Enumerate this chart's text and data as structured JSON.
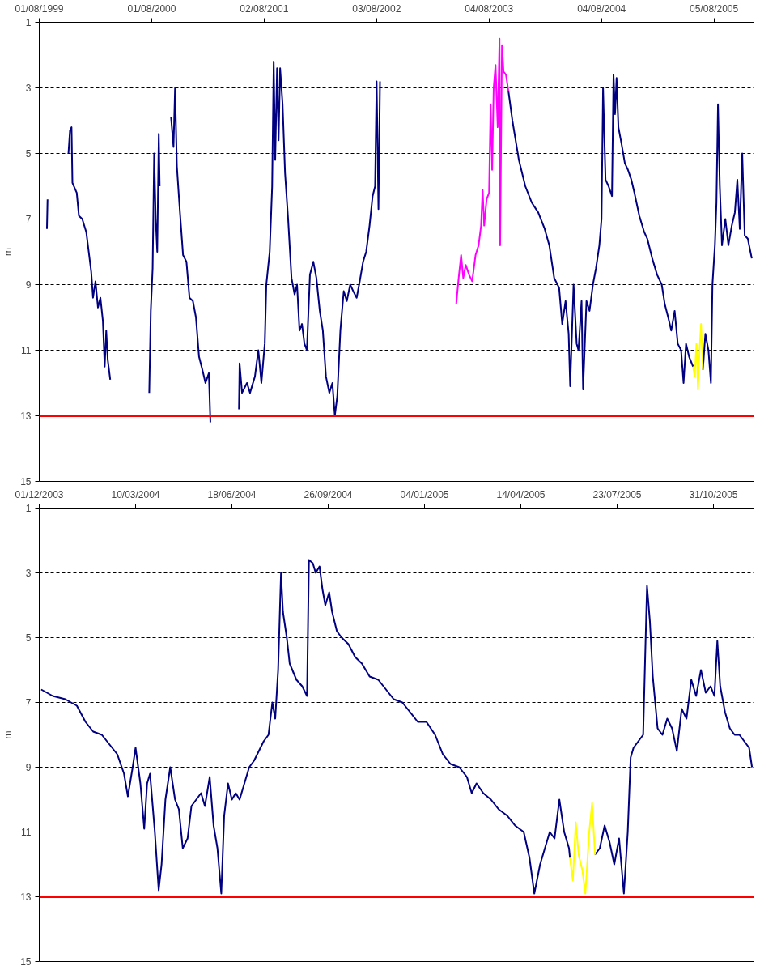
{
  "chart_data": [
    {
      "type": "line",
      "ylabel": "m",
      "xlim": [
        "1999-08-01",
        "2005-12-13"
      ],
      "ylim": [
        15,
        1
      ],
      "yticks": [
        1,
        3,
        5,
        7,
        9,
        11,
        13,
        15
      ],
      "xticks": [
        {
          "value": "1999-08-01",
          "label": "01/08/1999"
        },
        {
          "value": "2000-08-01",
          "label": "01/08/2000"
        },
        {
          "value": "2001-08-02",
          "label": "02/08/2001"
        },
        {
          "value": "2002-08-03",
          "label": "03/08/2002"
        },
        {
          "value": "2003-08-04",
          "label": "04/08/2003"
        },
        {
          "value": "2004-08-04",
          "label": "04/08/2004"
        },
        {
          "value": "2005-08-05",
          "label": "05/08/2005"
        }
      ],
      "grid": "y",
      "ref_lines": [
        {
          "axis": "y",
          "value": 13,
          "color": "#ff0000"
        }
      ],
      "series": [
        {
          "color": "#000080",
          "x": [
            "1999-08-26",
            "1999-08-28",
            "1999-10-01",
            "1999-11-04",
            "1999-11-09",
            "1999-11-14",
            "1999-11-17",
            "1999-12-01",
            "1999-12-08",
            "1999-12-19",
            "2000-01-01",
            "2000-01-09",
            "2000-01-17",
            "2000-01-23",
            "2000-01-31",
            "2000-02-08",
            "2000-02-16",
            "2000-02-24",
            "2000-03-01",
            "2000-03-06",
            "2000-03-11",
            "2000-03-19",
            "2000-05-15",
            "2000-07-24",
            "2000-07-29",
            "2000-08-04",
            "2000-08-09",
            "2000-08-14",
            "2000-08-19",
            "2000-08-24",
            "2000-08-27",
            "2000-09-15",
            "2000-10-03",
            "2000-10-11",
            "2000-10-16",
            "2000-10-22",
            "2000-11-01",
            "2000-11-11",
            "2000-11-22",
            "2000-12-02",
            "2000-12-13",
            "2000-12-23",
            "2001-01-02",
            "2001-01-13",
            "2001-01-23",
            "2001-02-03",
            "2001-02-08",
            "2001-04-01",
            "2001-05-12",
            "2001-05-14",
            "2001-05-22",
            "2001-06-07",
            "2001-06-17",
            "2001-07-03",
            "2001-07-14",
            "2001-07-24",
            "2001-08-04",
            "2001-08-09",
            "2001-08-20",
            "2001-08-28",
            "2001-09-02",
            "2001-09-07",
            "2001-09-13",
            "2001-09-18",
            "2001-09-23",
            "2001-10-01",
            "2001-10-09",
            "2001-10-19",
            "2001-10-30",
            "2001-11-09",
            "2001-11-17",
            "2001-11-25",
            "2001-12-03",
            "2001-12-11",
            "2001-12-19",
            "2001-12-29",
            "2002-01-09",
            "2002-01-19",
            "2002-01-30",
            "2002-02-09",
            "2002-02-19",
            "2002-03-02",
            "2002-03-12",
            "2002-03-20",
            "2002-03-28",
            "2002-04-07",
            "2002-04-18",
            "2002-04-28",
            "2002-05-09",
            "2002-05-19",
            "2002-05-30",
            "2002-06-09",
            "2002-06-20",
            "2002-06-30",
            "2002-07-11",
            "2002-07-21",
            "2002-07-29",
            "2002-08-03",
            "2002-08-09",
            "2002-08-14",
            "2002-12-01",
            "2003-10-06",
            "2003-10-19",
            "2003-11-09",
            "2003-11-30",
            "2003-12-21",
            "2004-01-11",
            "2004-02-01",
            "2004-02-16",
            "2004-03-03",
            "2004-03-19",
            "2004-03-29",
            "2004-04-09",
            "2004-04-19",
            "2004-04-24",
            "2004-05-05",
            "2004-05-15",
            "2004-05-21",
            "2004-05-31",
            "2004-06-05",
            "2004-06-16",
            "2004-06-26",
            "2004-07-07",
            "2004-07-17",
            "2004-07-28",
            "2004-08-04",
            "2004-08-09",
            "2004-08-17",
            "2004-08-27",
            "2004-09-07",
            "2004-09-12",
            "2004-09-17",
            "2004-09-22",
            "2004-09-28",
            "2004-10-08",
            "2004-10-19",
            "2004-10-29",
            "2004-11-09",
            "2004-11-19",
            "2004-12-05",
            "2004-12-21",
            "2004-12-31",
            "2005-01-16",
            "2005-02-01",
            "2005-02-16",
            "2005-02-26",
            "2005-03-09",
            "2005-03-19",
            "2005-03-30",
            "2005-04-09",
            "2005-04-20",
            "2005-04-28",
            "2005-05-06",
            "2005-05-16",
            "2005-05-29",
            "2005-06-15",
            "2005-06-30",
            "2005-07-08",
            "2005-07-18",
            "2005-07-26",
            "2005-07-31",
            "2005-08-08",
            "2005-08-13",
            "2005-08-18",
            "2005-08-24",
            "2005-08-31",
            "2005-09-11",
            "2005-09-21",
            "2005-10-02",
            "2005-10-12",
            "2005-10-20",
            "2005-10-28",
            "2005-11-05",
            "2005-11-13",
            "2005-11-23",
            "2005-12-06"
          ],
          "values": [
            7.3,
            6.4,
            null,
            5.0,
            4.3,
            4.2,
            5.9,
            6.2,
            6.9,
            7.0,
            7.4,
            8.0,
            8.6,
            9.4,
            8.9,
            9.7,
            9.4,
            10.1,
            11.5,
            10.4,
            11.3,
            11.9,
            null,
            12.3,
            9.8,
            8.5,
            5.0,
            7.0,
            8.0,
            4.4,
            6.0,
            null,
            3.9,
            4.8,
            3.0,
            5.4,
            6.8,
            8.1,
            8.3,
            9.4,
            9.5,
            10.0,
            11.2,
            11.6,
            12.0,
            11.7,
            13.2,
            null,
            12.8,
            11.4,
            12.3,
            12.0,
            12.3,
            11.8,
            11.0,
            12.0,
            10.8,
            9.0,
            8.0,
            6.0,
            2.2,
            5.2,
            2.4,
            4.6,
            2.4,
            3.5,
            5.6,
            7.0,
            8.8,
            9.3,
            9.0,
            10.4,
            10.2,
            10.8,
            11.0,
            8.7,
            8.3,
            8.8,
            9.8,
            10.4,
            11.8,
            12.3,
            12.0,
            13.0,
            12.4,
            10.4,
            9.2,
            9.5,
            9.0,
            9.2,
            9.4,
            8.9,
            8.3,
            8.0,
            7.2,
            6.3,
            6.0,
            2.8,
            6.7,
            2.8,
            null,
            3.1,
            4.0,
            5.2,
            6.0,
            6.5,
            6.8,
            7.3,
            7.8,
            8.8,
            9.1,
            10.2,
            9.5,
            10.5,
            12.1,
            9.0,
            10.8,
            11.0,
            9.5,
            12.2,
            9.5,
            9.8,
            9.0,
            8.5,
            7.8,
            7.0,
            3.0,
            5.8,
            6.0,
            6.3,
            2.6,
            3.8,
            2.7,
            4.2,
            4.7,
            5.3,
            5.5,
            5.8,
            6.2,
            6.9,
            7.4,
            7.6,
            8.2,
            8.7,
            9.0,
            9.6,
            10.0,
            10.4,
            9.8,
            10.8,
            11.0,
            12.0,
            10.8,
            11.2,
            11.5,
            null,
            11.6,
            10.5,
            11.0,
            12.0,
            9.0,
            7.8,
            6.5,
            3.5,
            6.0,
            7.8,
            7.0,
            7.8,
            7.2,
            6.8,
            5.8,
            7.3,
            5.0,
            7.5,
            7.6,
            8.2
          ]
        },
        {
          "color": "#ff00ff",
          "x": [
            "2003-04-19",
            "2003-04-27",
            "2003-05-05",
            "2003-05-12",
            "2003-05-20",
            "2003-05-31",
            "2003-06-10",
            "2003-06-21",
            "2003-07-01",
            "2003-07-09",
            "2003-07-14",
            "2003-07-19",
            "2003-07-27",
            "2003-08-04",
            "2003-08-09",
            "2003-08-14",
            "2003-08-19",
            "2003-08-25",
            "2003-09-01",
            "2003-09-07",
            "2003-09-09",
            "2003-09-15",
            "2003-09-20",
            "2003-09-28",
            "2003-10-06"
          ],
          "values": [
            9.6,
            8.8,
            8.1,
            8.8,
            8.4,
            8.7,
            8.9,
            8.1,
            7.8,
            7.2,
            6.1,
            7.2,
            6.4,
            6.2,
            3.5,
            5.5,
            3.0,
            2.3,
            4.2,
            1.5,
            7.8,
            1.7,
            2.5,
            2.6,
            3.1
          ]
        },
        {
          "color": "#ffff00",
          "x": [
            "2005-05-29",
            "2005-06-03",
            "2005-06-09",
            "2005-06-14",
            "2005-06-19",
            "2005-06-24",
            "2005-06-30"
          ],
          "values": [
            11.5,
            11.8,
            10.8,
            12.2,
            11.0,
            10.2,
            11.6
          ]
        }
      ]
    },
    {
      "type": "line",
      "ylabel": "m",
      "xlim": [
        "2003-12-01",
        "2005-12-12"
      ],
      "ylim": [
        15,
        1
      ],
      "yticks": [
        1,
        3,
        5,
        7,
        9,
        11,
        13,
        15
      ],
      "xticks": [
        {
          "value": "2003-12-01",
          "label": "01/12/2003"
        },
        {
          "value": "2004-03-10",
          "label": "10/03/2004"
        },
        {
          "value": "2004-06-18",
          "label": "18/06/2004"
        },
        {
          "value": "2004-09-26",
          "label": "26/09/2004"
        },
        {
          "value": "2005-01-04",
          "label": "04/01/2005"
        },
        {
          "value": "2005-04-14",
          "label": "14/04/2005"
        },
        {
          "value": "2005-07-23",
          "label": "23/07/2005"
        },
        {
          "value": "2005-10-31",
          "label": "31/10/2005"
        }
      ],
      "grid": "y",
      "ref_lines": [
        {
          "axis": "y",
          "value": 13,
          "color": "#ff0000"
        }
      ],
      "series": [
        {
          "color": "#000080",
          "x": [
            "2003-12-03",
            "2003-12-15",
            "2003-12-28",
            "2004-01-09",
            "2004-01-18",
            "2004-01-26",
            "2004-02-04",
            "2004-02-12",
            "2004-02-20",
            "2004-02-27",
            "2004-03-02",
            "2004-03-07",
            "2004-03-10",
            "2004-03-15",
            "2004-03-19",
            "2004-03-22",
            "2004-03-25",
            "2004-03-30",
            "2004-04-03",
            "2004-04-06",
            "2004-04-10",
            "2004-04-15",
            "2004-04-20",
            "2004-04-24",
            "2004-04-28",
            "2004-05-03",
            "2004-05-07",
            "2004-05-12",
            "2004-05-17",
            "2004-05-21",
            "2004-05-26",
            "2004-05-30",
            "2004-06-03",
            "2004-06-07",
            "2004-06-10",
            "2004-06-14",
            "2004-06-18",
            "2004-06-22",
            "2004-06-26",
            "2004-07-01",
            "2004-07-06",
            "2004-07-11",
            "2004-07-16",
            "2004-07-21",
            "2004-07-26",
            "2004-07-30",
            "2004-08-02",
            "2004-08-05",
            "2004-08-08",
            "2004-08-10",
            "2004-08-14",
            "2004-08-17",
            "2004-08-24",
            "2004-08-30",
            "2004-09-04",
            "2004-09-06",
            "2004-09-10",
            "2004-09-13",
            "2004-09-17",
            "2004-09-20",
            "2004-09-23",
            "2004-09-27",
            "2004-09-30",
            "2004-10-05",
            "2004-10-10",
            "2004-10-17",
            "2004-10-24",
            "2004-10-31",
            "2004-11-08",
            "2004-11-17",
            "2004-11-25",
            "2004-12-03",
            "2004-12-12",
            "2004-12-20",
            "2004-12-28",
            "2005-01-06",
            "2005-01-15",
            "2005-01-23",
            "2005-01-31",
            "2005-02-09",
            "2005-02-17",
            "2005-02-22",
            "2005-02-27",
            "2005-03-06",
            "2005-03-14",
            "2005-03-22",
            "2005-03-31",
            "2005-04-08",
            "2005-04-17",
            "2005-04-23",
            "2005-04-28",
            "2005-05-04",
            "2005-05-09",
            "2005-05-14",
            "2005-05-19",
            "2005-05-24",
            "2005-05-29",
            "2005-06-03",
            "2005-06-04",
            "2005-06-17",
            "2005-06-30",
            "2005-07-05",
            "2005-07-10",
            "2005-07-15",
            "2005-07-20",
            "2005-07-25",
            "2005-07-30",
            "2005-08-03",
            "2005-08-06",
            "2005-08-09",
            "2005-08-14",
            "2005-08-19",
            "2005-08-23",
            "2005-08-26",
            "2005-08-29",
            "2005-09-03",
            "2005-09-08",
            "2005-09-13",
            "2005-09-18",
            "2005-09-23",
            "2005-09-28",
            "2005-10-03",
            "2005-10-08",
            "2005-10-13",
            "2005-10-18",
            "2005-10-23",
            "2005-10-28",
            "2005-11-01",
            "2005-11-04",
            "2005-11-07",
            "2005-11-12",
            "2005-11-17",
            "2005-11-22",
            "2005-11-27",
            "2005-12-02",
            "2005-12-07",
            "2005-12-10"
          ],
          "values": [
            6.6,
            6.8,
            6.9,
            7.1,
            7.6,
            7.9,
            8.0,
            8.3,
            8.6,
            9.2,
            9.9,
            9.0,
            8.4,
            9.5,
            10.9,
            9.5,
            9.2,
            11.0,
            12.8,
            12.0,
            10.0,
            9.0,
            10.0,
            10.3,
            11.5,
            11.2,
            10.2,
            10.0,
            9.8,
            10.2,
            9.3,
            10.8,
            11.5,
            12.9,
            10.5,
            9.5,
            10.0,
            9.8,
            10.0,
            9.5,
            9.0,
            8.8,
            8.5,
            8.2,
            8.0,
            7.0,
            7.5,
            6.0,
            3.0,
            4.2,
            5.0,
            5.8,
            6.3,
            6.5,
            6.8,
            2.6,
            2.7,
            3.0,
            2.8,
            3.5,
            4.0,
            3.6,
            4.2,
            4.8,
            5.0,
            5.2,
            5.6,
            5.8,
            6.2,
            6.3,
            6.6,
            6.9,
            7.0,
            7.3,
            7.6,
            7.6,
            8.0,
            8.6,
            8.9,
            9.0,
            9.3,
            9.8,
            9.5,
            9.8,
            10.0,
            10.3,
            10.5,
            10.8,
            11.0,
            11.8,
            12.9,
            12.0,
            11.5,
            11.0,
            11.2,
            10.0,
            11.0,
            11.5,
            11.8,
            null,
            11.7,
            11.5,
            10.8,
            11.3,
            12.0,
            11.2,
            12.9,
            11.0,
            8.7,
            8.4,
            8.2,
            8.0,
            3.4,
            4.5,
            6.2,
            7.8,
            8.0,
            7.5,
            7.8,
            8.5,
            7.2,
            7.5,
            6.3,
            6.8,
            6.0,
            6.7,
            6.5,
            6.8,
            5.1,
            6.5,
            7.3,
            7.8,
            8.0,
            8.0,
            8.2,
            8.4,
            9.0
          ]
        },
        {
          "color": "#ffff00",
          "x": [
            "2005-06-04",
            "2005-06-07",
            "2005-06-10",
            "2005-06-13",
            "2005-06-17",
            "2005-06-20",
            "2005-06-24",
            "2005-06-27",
            "2005-06-30"
          ],
          "values": [
            11.8,
            12.5,
            10.7,
            11.7,
            12.2,
            12.9,
            11.0,
            10.1,
            11.7
          ]
        }
      ]
    }
  ]
}
